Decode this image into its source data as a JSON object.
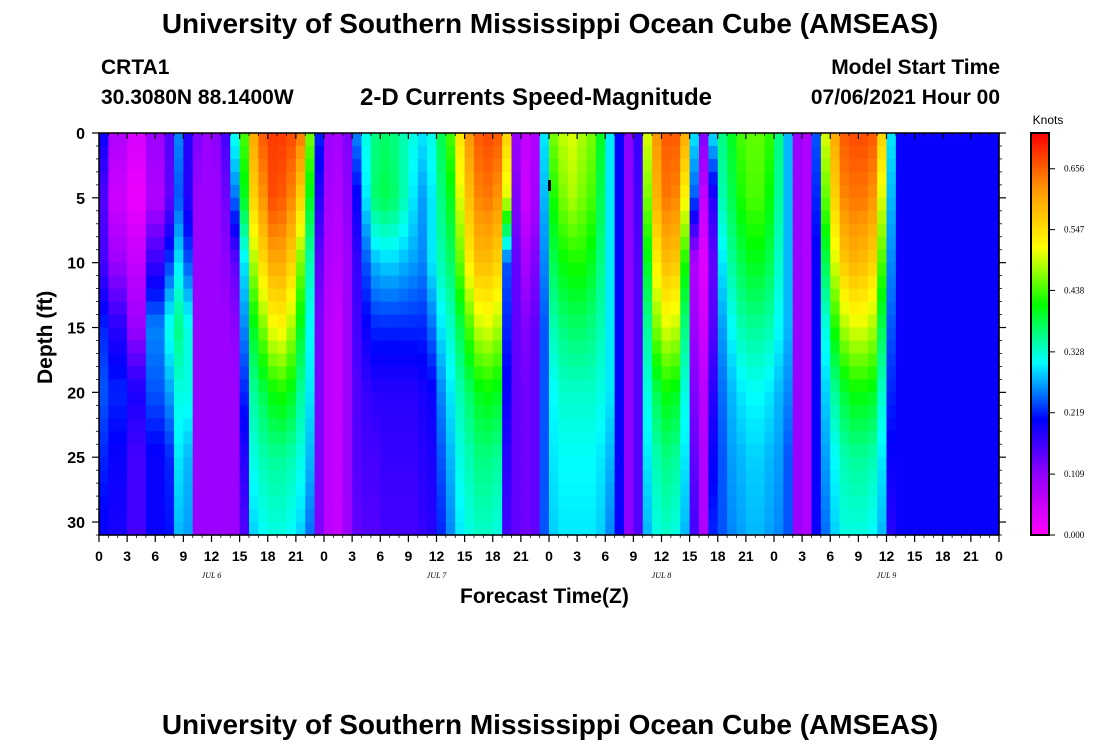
{
  "page": {
    "title_top": "University of Southern Mississippi Ocean Cube (AMSEAS)",
    "title_bottom": "University of Southern Mississippi Ocean Cube (AMSEAS)",
    "station_id": "CRTA1",
    "station_coords": "30.3080N  88.1400W",
    "chart_title": "2-D Currents Speed-Magnitude",
    "model_start_label": "Model Start Time",
    "model_start_value": "07/06/2021 Hour 00"
  },
  "colors": {
    "scale": [
      "#ff00ff",
      "#9900ff",
      "#0000ff",
      "#00ffff",
      "#00ff00",
      "#ffff00",
      "#ff9900",
      "#ff0000"
    ]
  },
  "chart_data": {
    "type": "heatmap",
    "title": "2-D Currents Speed-Magnitude",
    "xlabel": "Forecast Time(Z)",
    "ylabel": "Depth (ft)",
    "x_range_hours": [
      0,
      96
    ],
    "x_tick_labels": [
      "0",
      "3",
      "6",
      "9",
      "12",
      "15",
      "18",
      "21",
      "0",
      "3",
      "6",
      "9",
      "12",
      "15",
      "18",
      "21",
      "0",
      "3",
      "6",
      "9",
      "12",
      "15",
      "18",
      "21",
      "0",
      "3",
      "6",
      "9",
      "12",
      "15",
      "18",
      "21",
      "0"
    ],
    "day_labels": [
      {
        "label": "JUL 6",
        "hour": 12
      },
      {
        "label": "JUL 7",
        "hour": 36
      },
      {
        "label": "JUL 8",
        "hour": 60
      },
      {
        "label": "JUL 9",
        "hour": 84
      }
    ],
    "y_range": [
      0,
      31
    ],
    "y_ticks": [
      0,
      5,
      10,
      15,
      20,
      25,
      30
    ],
    "colorbar": {
      "label": "Knots",
      "range": [
        0,
        0.72
      ],
      "tick_labels": [
        "0.000",
        "0.109",
        "0.219",
        "0.328",
        "0.438",
        "0.547",
        "0.656"
      ],
      "tick_values": [
        0,
        0.109,
        0.219,
        0.328,
        0.438,
        0.547,
        0.656
      ]
    },
    "depths": [
      0,
      5,
      10,
      15,
      20,
      25,
      31
    ],
    "columns": [
      {
        "hour": 0,
        "values": [
          0.2,
          0.15,
          0.16,
          0.22,
          0.24,
          0.22,
          0.2
        ]
      },
      {
        "hour": 1,
        "values": [
          0.08,
          0.05,
          0.1,
          0.18,
          0.22,
          0.2,
          0.19
        ]
      },
      {
        "hour": 3,
        "values": [
          0.04,
          0.02,
          0.06,
          0.1,
          0.19,
          0.16,
          0.16
        ]
      },
      {
        "hour": 5,
        "values": [
          0.1,
          0.08,
          0.17,
          0.26,
          0.24,
          0.2,
          0.2
        ]
      },
      {
        "hour": 7,
        "values": [
          0.15,
          0.14,
          0.23,
          0.32,
          0.27,
          0.22,
          0.21
        ]
      },
      {
        "hour": 8,
        "values": [
          0.26,
          0.24,
          0.3,
          0.36,
          0.32,
          0.3,
          0.28
        ]
      },
      {
        "hour": 9,
        "values": [
          0.18,
          0.18,
          0.24,
          0.32,
          0.32,
          0.28,
          0.27
        ]
      },
      {
        "hour": 10,
        "values": [
          0.12,
          0.1,
          0.1,
          0.1,
          0.1,
          0.1,
          0.1
        ]
      },
      {
        "hour": 11,
        "values": [
          0.1,
          0.1,
          0.1,
          0.1,
          0.1,
          0.1,
          0.1
        ]
      },
      {
        "hour": 12,
        "values": [
          0.11,
          0.1,
          0.1,
          0.1,
          0.1,
          0.1,
          0.1
        ]
      },
      {
        "hour": 13,
        "values": [
          0.16,
          0.13,
          0.11,
          0.1,
          0.1,
          0.1,
          0.1
        ]
      },
      {
        "hour": 14,
        "values": [
          0.32,
          0.25,
          0.14,
          0.11,
          0.1,
          0.1,
          0.1
        ]
      },
      {
        "hour": 15,
        "values": [
          0.44,
          0.4,
          0.3,
          0.26,
          0.22,
          0.18,
          0.15
        ]
      },
      {
        "hour": 16,
        "values": [
          0.6,
          0.56,
          0.48,
          0.4,
          0.35,
          0.32,
          0.29
        ]
      },
      {
        "hour": 17,
        "values": [
          0.66,
          0.62,
          0.55,
          0.46,
          0.38,
          0.34,
          0.31
        ]
      },
      {
        "hour": 18,
        "values": [
          0.68,
          0.67,
          0.6,
          0.51,
          0.41,
          0.35,
          0.32
        ]
      },
      {
        "hour": 19,
        "values": [
          0.68,
          0.66,
          0.6,
          0.52,
          0.42,
          0.35,
          0.32
        ]
      },
      {
        "hour": 20,
        "values": [
          0.67,
          0.63,
          0.56,
          0.48,
          0.4,
          0.34,
          0.31
        ]
      },
      {
        "hour": 21,
        "values": [
          0.64,
          0.56,
          0.46,
          0.4,
          0.35,
          0.32,
          0.29
        ]
      },
      {
        "hour": 22,
        "values": [
          0.46,
          0.4,
          0.34,
          0.31,
          0.3,
          0.28,
          0.25
        ]
      },
      {
        "hour": 23,
        "values": [
          0.22,
          0.18,
          0.14,
          0.12,
          0.12,
          0.12,
          0.12
        ]
      },
      {
        "hour": 24,
        "values": [
          0.1,
          0.09,
          0.08,
          0.07,
          0.07,
          0.07,
          0.07
        ]
      },
      {
        "hour": 25,
        "values": [
          0.09,
          0.08,
          0.07,
          0.06,
          0.06,
          0.06,
          0.06
        ]
      },
      {
        "hour": 26,
        "values": [
          0.12,
          0.11,
          0.1,
          0.1,
          0.1,
          0.1,
          0.1
        ]
      },
      {
        "hour": 27,
        "values": [
          0.26,
          0.2,
          0.17,
          0.16,
          0.15,
          0.15,
          0.14
        ]
      },
      {
        "hour": 28,
        "values": [
          0.32,
          0.3,
          0.24,
          0.2,
          0.17,
          0.16,
          0.15
        ]
      },
      {
        "hour": 29,
        "values": [
          0.36,
          0.37,
          0.28,
          0.22,
          0.18,
          0.16,
          0.15
        ]
      },
      {
        "hour": 30,
        "values": [
          0.37,
          0.38,
          0.29,
          0.22,
          0.18,
          0.17,
          0.16
        ]
      },
      {
        "hour": 31,
        "values": [
          0.36,
          0.37,
          0.29,
          0.22,
          0.18,
          0.17,
          0.16
        ]
      },
      {
        "hour": 32,
        "values": [
          0.34,
          0.34,
          0.28,
          0.22,
          0.18,
          0.17,
          0.16
        ]
      },
      {
        "hour": 33,
        "values": [
          0.32,
          0.3,
          0.27,
          0.22,
          0.18,
          0.17,
          0.16
        ]
      },
      {
        "hour": 34,
        "values": [
          0.3,
          0.27,
          0.26,
          0.22,
          0.19,
          0.18,
          0.17
        ]
      },
      {
        "hour": 35,
        "values": [
          0.32,
          0.3,
          0.3,
          0.25,
          0.2,
          0.19,
          0.18
        ]
      },
      {
        "hour": 36,
        "values": [
          0.38,
          0.36,
          0.34,
          0.3,
          0.26,
          0.24,
          0.22
        ]
      },
      {
        "hour": 37,
        "values": [
          0.44,
          0.4,
          0.37,
          0.33,
          0.3,
          0.28,
          0.26
        ]
      },
      {
        "hour": 38,
        "values": [
          0.54,
          0.5,
          0.45,
          0.38,
          0.34,
          0.32,
          0.3
        ]
      },
      {
        "hour": 39,
        "values": [
          0.62,
          0.58,
          0.53,
          0.44,
          0.37,
          0.34,
          0.32
        ]
      },
      {
        "hour": 40,
        "values": [
          0.66,
          0.63,
          0.58,
          0.49,
          0.4,
          0.36,
          0.33
        ]
      },
      {
        "hour": 41,
        "values": [
          0.67,
          0.64,
          0.58,
          0.5,
          0.41,
          0.36,
          0.33
        ]
      },
      {
        "hour": 42,
        "values": [
          0.66,
          0.62,
          0.56,
          0.48,
          0.4,
          0.35,
          0.32
        ]
      },
      {
        "hour": 43,
        "values": [
          0.56,
          0.5,
          0.24,
          0.22,
          0.2,
          0.18,
          0.16
        ]
      },
      {
        "hour": 44,
        "values": [
          0.1,
          0.12,
          0.14,
          0.14,
          0.14,
          0.14,
          0.14
        ]
      },
      {
        "hour": 45,
        "values": [
          0.06,
          0.05,
          0.09,
          0.12,
          0.13,
          0.13,
          0.13
        ]
      },
      {
        "hour": 46,
        "values": [
          0.08,
          0.09,
          0.12,
          0.14,
          0.14,
          0.14,
          0.14
        ]
      },
      {
        "hour": 47,
        "values": [
          0.3,
          0.28,
          0.26,
          0.24,
          0.24,
          0.24,
          0.24
        ]
      },
      {
        "hour": 48,
        "values": [
          0.46,
          0.42,
          0.38,
          0.34,
          0.31,
          0.3,
          0.29
        ]
      },
      {
        "hour": 49,
        "values": [
          0.49,
          0.46,
          0.41,
          0.36,
          0.33,
          0.31,
          0.3
        ]
      },
      {
        "hour": 50,
        "values": [
          0.5,
          0.48,
          0.42,
          0.37,
          0.33,
          0.31,
          0.3
        ]
      },
      {
        "hour": 51,
        "values": [
          0.48,
          0.46,
          0.42,
          0.37,
          0.33,
          0.31,
          0.3
        ]
      },
      {
        "hour": 52,
        "values": [
          0.46,
          0.44,
          0.4,
          0.36,
          0.33,
          0.31,
          0.3
        ]
      },
      {
        "hour": 53,
        "values": [
          0.4,
          0.38,
          0.36,
          0.34,
          0.32,
          0.3,
          0.29
        ]
      },
      {
        "hour": 54,
        "values": [
          0.3,
          0.3,
          0.3,
          0.3,
          0.3,
          0.28,
          0.26
        ]
      },
      {
        "hour": 55,
        "values": [
          0.2,
          0.2,
          0.2,
          0.2,
          0.2,
          0.2,
          0.2
        ]
      },
      {
        "hour": 56,
        "values": [
          0.11,
          0.11,
          0.11,
          0.11,
          0.11,
          0.11,
          0.11
        ]
      },
      {
        "hour": 57,
        "values": [
          0.17,
          0.16,
          0.15,
          0.15,
          0.15,
          0.15,
          0.15
        ]
      },
      {
        "hour": 58,
        "values": [
          0.5,
          0.46,
          0.4,
          0.35,
          0.32,
          0.3,
          0.28
        ]
      },
      {
        "hour": 59,
        "values": [
          0.62,
          0.59,
          0.53,
          0.46,
          0.38,
          0.34,
          0.32
        ]
      },
      {
        "hour": 60,
        "values": [
          0.66,
          0.64,
          0.58,
          0.5,
          0.41,
          0.36,
          0.33
        ]
      },
      {
        "hour": 61,
        "values": [
          0.66,
          0.63,
          0.57,
          0.49,
          0.4,
          0.35,
          0.32
        ]
      },
      {
        "hour": 62,
        "values": [
          0.6,
          0.52,
          0.42,
          0.36,
          0.32,
          0.3,
          0.28
        ]
      },
      {
        "hour": 63,
        "values": [
          0.3,
          0.24,
          0.08,
          0.1,
          0.12,
          0.14,
          0.16
        ]
      },
      {
        "hour": 64,
        "values": [
          0.12,
          0.06,
          0.03,
          0.05,
          0.07,
          0.08,
          0.08
        ]
      },
      {
        "hour": 65,
        "values": [
          0.3,
          0.18,
          0.14,
          0.15,
          0.18,
          0.2,
          0.22
        ]
      },
      {
        "hour": 66,
        "values": [
          0.36,
          0.34,
          0.3,
          0.27,
          0.25,
          0.24,
          0.24
        ]
      },
      {
        "hour": 67,
        "values": [
          0.4,
          0.38,
          0.35,
          0.31,
          0.28,
          0.27,
          0.26
        ]
      },
      {
        "hour": 68,
        "values": [
          0.44,
          0.42,
          0.38,
          0.34,
          0.3,
          0.28,
          0.27
        ]
      },
      {
        "hour": 69,
        "values": [
          0.45,
          0.44,
          0.4,
          0.35,
          0.31,
          0.29,
          0.28
        ]
      },
      {
        "hour": 70,
        "values": [
          0.45,
          0.44,
          0.4,
          0.35,
          0.31,
          0.29,
          0.28
        ]
      },
      {
        "hour": 71,
        "values": [
          0.43,
          0.41,
          0.38,
          0.34,
          0.3,
          0.28,
          0.27
        ]
      },
      {
        "hour": 72,
        "values": [
          0.36,
          0.35,
          0.33,
          0.31,
          0.28,
          0.27,
          0.26
        ]
      },
      {
        "hour": 73,
        "values": [
          0.28,
          0.28,
          0.28,
          0.28,
          0.26,
          0.24,
          0.24
        ]
      },
      {
        "hour": 74,
        "values": [
          0.1,
          0.1,
          0.1,
          0.1,
          0.1,
          0.1,
          0.1
        ]
      },
      {
        "hour": 75,
        "values": [
          0.08,
          0.08,
          0.08,
          0.08,
          0.08,
          0.08,
          0.08
        ]
      },
      {
        "hour": 76,
        "values": [
          0.24,
          0.22,
          0.2,
          0.2,
          0.2,
          0.2,
          0.2
        ]
      },
      {
        "hour": 77,
        "values": [
          0.5,
          0.45,
          0.38,
          0.32,
          0.29,
          0.27,
          0.25
        ]
      },
      {
        "hour": 78,
        "values": [
          0.6,
          0.56,
          0.5,
          0.42,
          0.35,
          0.31,
          0.29
        ]
      },
      {
        "hour": 79,
        "values": [
          0.66,
          0.63,
          0.57,
          0.48,
          0.39,
          0.34,
          0.32
        ]
      },
      {
        "hour": 80,
        "values": [
          0.67,
          0.64,
          0.59,
          0.5,
          0.41,
          0.35,
          0.32
        ]
      },
      {
        "hour": 81,
        "values": [
          0.67,
          0.64,
          0.58,
          0.5,
          0.41,
          0.35,
          0.32
        ]
      },
      {
        "hour": 82,
        "values": [
          0.66,
          0.62,
          0.56,
          0.48,
          0.4,
          0.34,
          0.31
        ]
      },
      {
        "hour": 83,
        "values": [
          0.56,
          0.5,
          0.44,
          0.38,
          0.33,
          0.3,
          0.28
        ]
      },
      {
        "hour": 84,
        "values": [
          0.3,
          0.28,
          0.26,
          0.24,
          0.22,
          0.2,
          0.18
        ]
      },
      {
        "hour": 85,
        "values": [
          0.2,
          0.2,
          0.2,
          0.2,
          0.2,
          0.2,
          0.2
        ]
      }
    ]
  }
}
